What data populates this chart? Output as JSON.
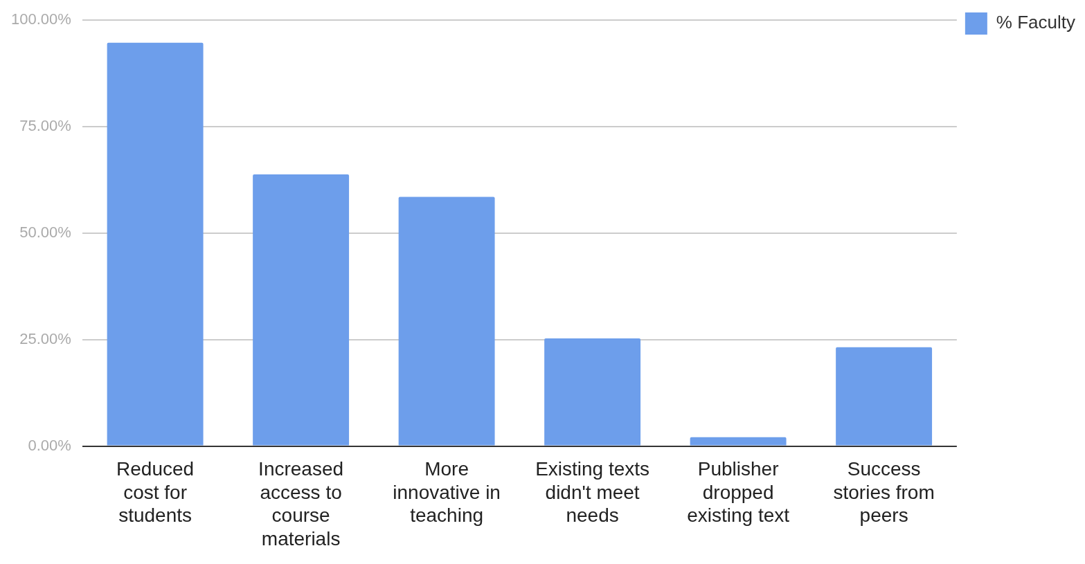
{
  "chart_data": {
    "type": "bar",
    "categories": [
      "Reduced cost for students",
      "Increased access to course materials",
      "More innovative in teaching",
      "Existing texts didn't meet needs",
      "Publisher dropped existing text",
      "Success stories from peers"
    ],
    "series": [
      {
        "name": "% Faculty",
        "color": "#6d9eeb",
        "values": [
          94.7,
          63.8,
          58.5,
          25.3,
          2.1,
          23.2
        ]
      }
    ],
    "ylim": [
      0,
      100
    ],
    "yticks": [
      {
        "value": 0,
        "label": "0.00%"
      },
      {
        "value": 25,
        "label": "25.00%"
      },
      {
        "value": 50,
        "label": "50.00%"
      },
      {
        "value": 75,
        "label": "75.00%"
      },
      {
        "value": 100,
        "label": "100.00%"
      }
    ],
    "grid": "y",
    "legend": "top right"
  }
}
